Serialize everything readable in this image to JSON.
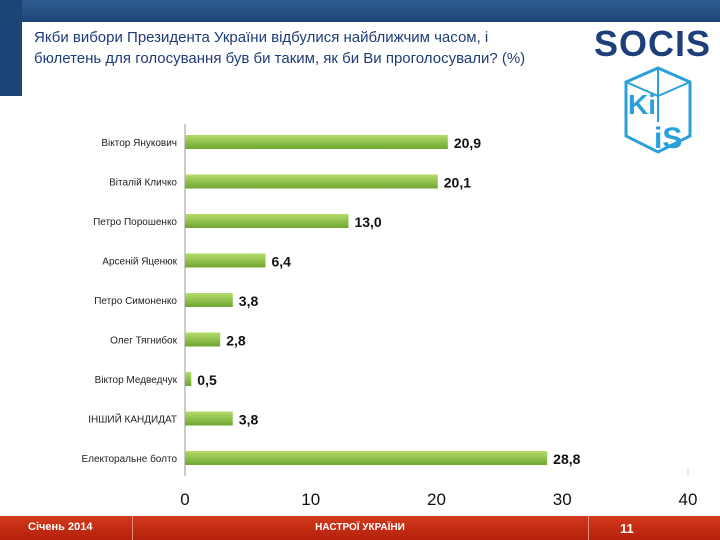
{
  "title": "Якби вибори Президента України відбулися найближчим часом, і бюлетень для голосування був би таким, як би Ви проголосували? (%)",
  "logos": {
    "socis": "SOCIS",
    "kiis_top": "Ki",
    "kiis_bottom": "iS"
  },
  "footer": {
    "date": "Січень 2014",
    "section": "НАСТРОЇ УКРАЇНИ",
    "page": "11"
  },
  "colors": {
    "bar_light": "#b5dc6b",
    "bar_dark": "#6fa530",
    "brand_blue": "#1d4677",
    "footer_red": "#c8301a"
  },
  "chart_data": {
    "type": "bar",
    "orientation": "horizontal",
    "categories": [
      "Віктор Янукович",
      "Віталій Кличко",
      "Петро Порошенко",
      "Арсеній Яценюк",
      "Петро Симоненко",
      "Олег Тягнибок",
      "Віктор Медведчук",
      "ІНШИЙ КАНДИДАТ",
      "Електоральне болто"
    ],
    "values": [
      20.9,
      20.1,
      13.0,
      6.4,
      3.8,
      2.8,
      0.5,
      3.8,
      28.8
    ],
    "value_labels": [
      "20,9",
      "20,1",
      "13,0",
      "6,4",
      "3,8",
      "2,8",
      "0,5",
      "3,8",
      "28,8"
    ],
    "xlim": [
      0,
      40
    ],
    "xticks": [
      0,
      10,
      20,
      30,
      40
    ],
    "xlabel": "",
    "ylabel": ""
  }
}
